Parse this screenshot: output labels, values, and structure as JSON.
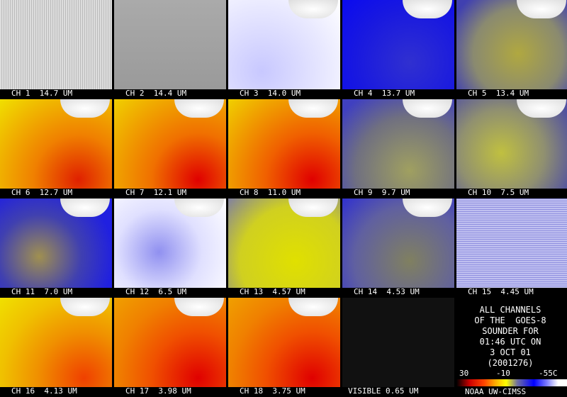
{
  "panels": [
    {
      "label": "CH 1  14.7 UM"
    },
    {
      "label": "CH 2  14.4 UM"
    },
    {
      "label": "CH 3  14.0 UM"
    },
    {
      "label": "CH 4  13.7 UM"
    },
    {
      "label": "CH 5  13.4 UM"
    },
    {
      "label": "CH 6  12.7 UM"
    },
    {
      "label": "CH 7  12.1 UM"
    },
    {
      "label": "CH 8  11.0 UM"
    },
    {
      "label": "CH 9  9.7 UM"
    },
    {
      "label": "CH 10  7.5 UM"
    },
    {
      "label": "CH 11  7.0 UM"
    },
    {
      "label": "CH 12  6.5 UM"
    },
    {
      "label": "CH 13  4.57 UM"
    },
    {
      "label": "CH 14  4.53 UM"
    },
    {
      "label": "CH 15  4.45 UM"
    },
    {
      "label": "CH 16  4.13 UM"
    },
    {
      "label": "CH 17  3.98 UM"
    },
    {
      "label": "CH 18  3.75 UM"
    },
    {
      "label": "VISIBLE 0.65 UM"
    }
  ],
  "info": {
    "lines": [
      "ALL CHANNELS",
      "OF THE  GOES-8",
      "SOUNDER FOR",
      "01:46 UTC ON",
      "3 OCT 01",
      "(2001276)"
    ]
  },
  "colorbar": {
    "labels": [
      "30",
      "-10",
      "-55C"
    ]
  },
  "credit": "NOAA UW-CIMSS"
}
